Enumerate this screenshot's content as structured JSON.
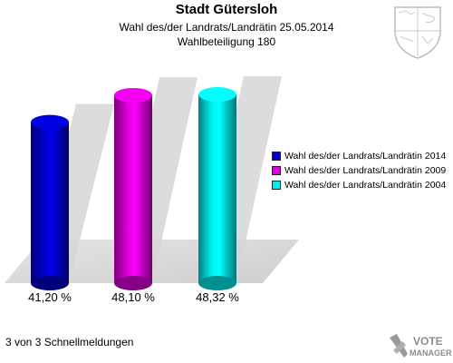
{
  "header": {
    "title": "Stadt Gütersloh",
    "subtitle": "Wahl des/der Landrats/Landrätin 25.05.2014",
    "turnout": "Wahlbeteiligung 180"
  },
  "chart_data": {
    "type": "bar",
    "categories": [
      "Wahl des/der Landrats/Landrätin 2014",
      "Wahl des/der Landrats/Landrätin 2009",
      "Wahl des/der Landrats/Landrätin 2004"
    ],
    "values": [
      41.2,
      48.1,
      48.32
    ],
    "value_labels": [
      "41,20 %",
      "48,10 %",
      "48,32 %"
    ],
    "colors": [
      "#0000cc",
      "#dd00dd",
      "#00eeee"
    ],
    "ylim": [
      0,
      55
    ],
    "grid": false,
    "legend_position": "right"
  },
  "legend": {
    "items": [
      {
        "label": "Wahl des/der Landrats/Landrätin 2014",
        "color": "#0000cc"
      },
      {
        "label": "Wahl des/der Landrats/Landrätin 2009",
        "color": "#dd00dd"
      },
      {
        "label": "Wahl des/der Landrats/Landrätin 2004",
        "color": "#00eeee"
      }
    ]
  },
  "footer": {
    "reports": "3 von 3 Schnellmeldungen"
  },
  "branding": {
    "logo_icon": "vote-manager-logo-icon",
    "crest_icon": "coat-of-arms-icon",
    "logo_text_top": "VOTE",
    "logo_text_bottom": "MANAGER"
  }
}
